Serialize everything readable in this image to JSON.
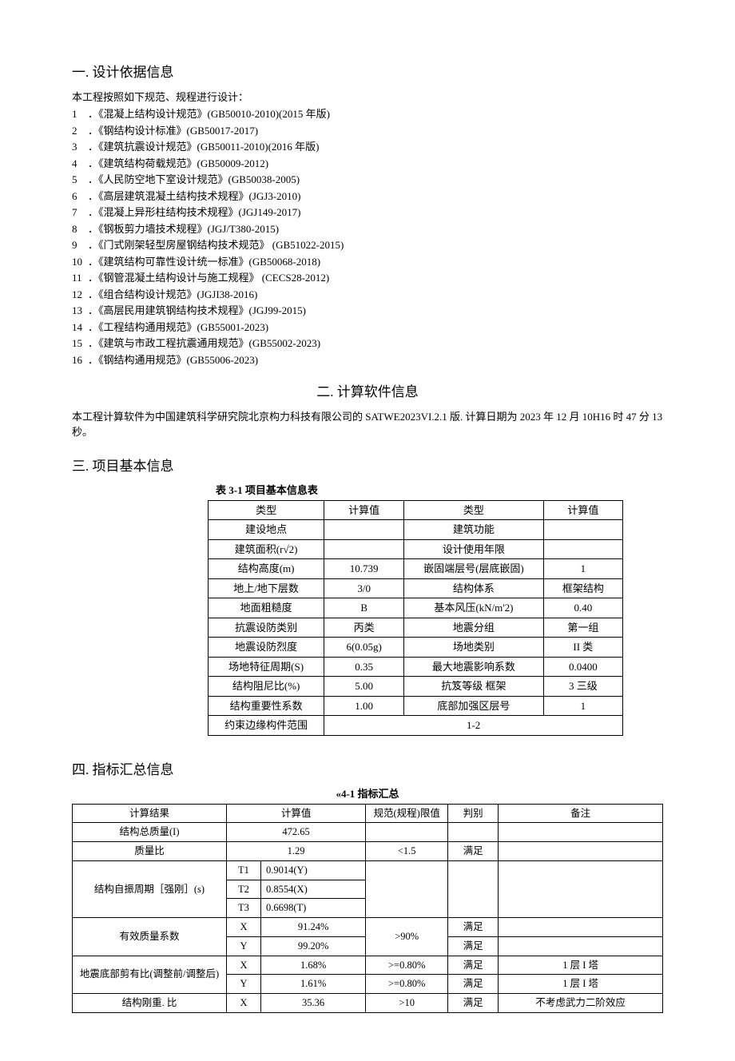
{
  "sections": {
    "s1": "一. 设计依据信息",
    "s2": "二. 计算软件信息",
    "s3": "三. 项目基本信息",
    "s4": "四. 指标汇总信息"
  },
  "intro1": "本工程按照如下规范、规程进行设计：",
  "specs": [
    "．《混凝上结构设计规范》(GB50010-2010)(2015 年版)",
    "．《钢结构设计标准》(GB50017-2017)",
    "．《建筑抗震设计规范》(GB50011-2010)(2016 年版)",
    "．《建筑结构荷载规范》(GB50009-2012)",
    "．《人民防空地下室设计规范》(GB50038-2005)",
    "．《高层建筑混凝土结构技术规程》(JGJ3-2010)",
    "．《混凝上异形柱结构技术规程》(JGJ149-2017)",
    "．《钢板剪力墙技术规程》(JGJ/T380-2015)",
    "．《门式刚架轻型房屋钢结构技术规范》 (GB51022-2015)",
    "．《建筑结构可靠性设计统一标准》(GB50068-2018)",
    "．《钢管混凝土结构设计与施工规程》 (CECS28-2012)",
    "．《组合结构设计规范》(JGJI38-2016)",
    "．《高层民用建筑钢结构技术规程》(JGJ99-2015)",
    "．《工程结构通用规范》(GB55001-2023)",
    "．《建筑与市政工程抗震通用规范》(GB55002-2023)",
    "．《钢结构通用规范》(GB55006-2023)"
  ],
  "software_para": "本工程计算软件为中国建筑科学研究院北京构力科技有限公司的 SATWE2023VI.2.1 版. 计算日期为 2023 年 12 月 10H16 时 47 分 13 秒。",
  "table3": {
    "title": "表 3-1 项目基本信息表",
    "headers": [
      "类型",
      "计算值",
      "类型",
      "计算值"
    ],
    "rows": [
      [
        "建设地点",
        "",
        "建筑功能",
        ""
      ],
      [
        "建筑面积(r√2)",
        "",
        "设计使用年限",
        ""
      ],
      [
        "结构高度(m)",
        "10.739",
        "嵌固端层号(层底嵌固)",
        "1"
      ],
      [
        "地上/地下层数",
        "3/0",
        "结构体系",
        "框架结构"
      ],
      [
        "地面粗糙度",
        "B",
        "基本风压(kN/m'2)",
        "0.40"
      ],
      [
        "抗震设防类别",
        "丙类",
        "地震分组",
        "第一组"
      ],
      [
        "地震设防烈度",
        "6(0.05g)",
        "场地类别",
        "II 类"
      ],
      [
        "场地特征周期(S)",
        "0.35",
        "最大地震影响系数",
        "0.0400"
      ],
      [
        "结构阻尼比(%)",
        "5.00",
        "抗笈等级         框架",
        "3 三级"
      ],
      [
        "结构重要性系数",
        "1.00",
        "底部加强区层号",
        "1"
      ]
    ],
    "last": [
      "约束边缘构件范围",
      "1-2"
    ]
  },
  "table4": {
    "title": "«4-1 指标汇总",
    "headers": [
      "计算结果",
      "计算值",
      "规范(规程)限值",
      "判别",
      "备注"
    ],
    "rows_simple": [
      {
        "name": "结构总质量(I)",
        "val": "472.65",
        "lim": "",
        "jud": "",
        "note": ""
      },
      {
        "name": "质量比",
        "val": "1.29",
        "lim": "<1.5",
        "jud": "满足",
        "note": ""
      }
    ],
    "period": {
      "name": "结构自振周期［强刚］(s)",
      "rows": [
        {
          "t": "T1",
          "v": "0.9014(Y)"
        },
        {
          "t": "T2",
          "v": "0.8554(X)"
        },
        {
          "t": "T3",
          "v": "0.6698(T)"
        }
      ]
    },
    "mass_coef": {
      "name": "有效质量系数",
      "lim": ">90%",
      "rows": [
        {
          "d": "X",
          "v": "91.24%",
          "jud": "满足",
          "note": ""
        },
        {
          "d": "Y",
          "v": "99.20%",
          "jud": "满足",
          "note": ""
        }
      ]
    },
    "shear_ratio": {
      "name": "地震底部剪有比(调整前/调整后)",
      "rows": [
        {
          "d": "X",
          "v": "1.68%",
          "lim": ">=0.80%",
          "jud": "满足",
          "note": "1 层 I 塔"
        },
        {
          "d": "Y",
          "v": "1.61%",
          "lim": ">=0.80%",
          "jud": "满足",
          "note": "1 层 I 塔"
        }
      ]
    },
    "stiff_weight": {
      "name": "结构刚重. 比",
      "rows": [
        {
          "d": "X",
          "v": "35.36",
          "lim": ">10",
          "jud": "满足",
          "note": "不考虑武力二阶效应"
        }
      ]
    }
  }
}
